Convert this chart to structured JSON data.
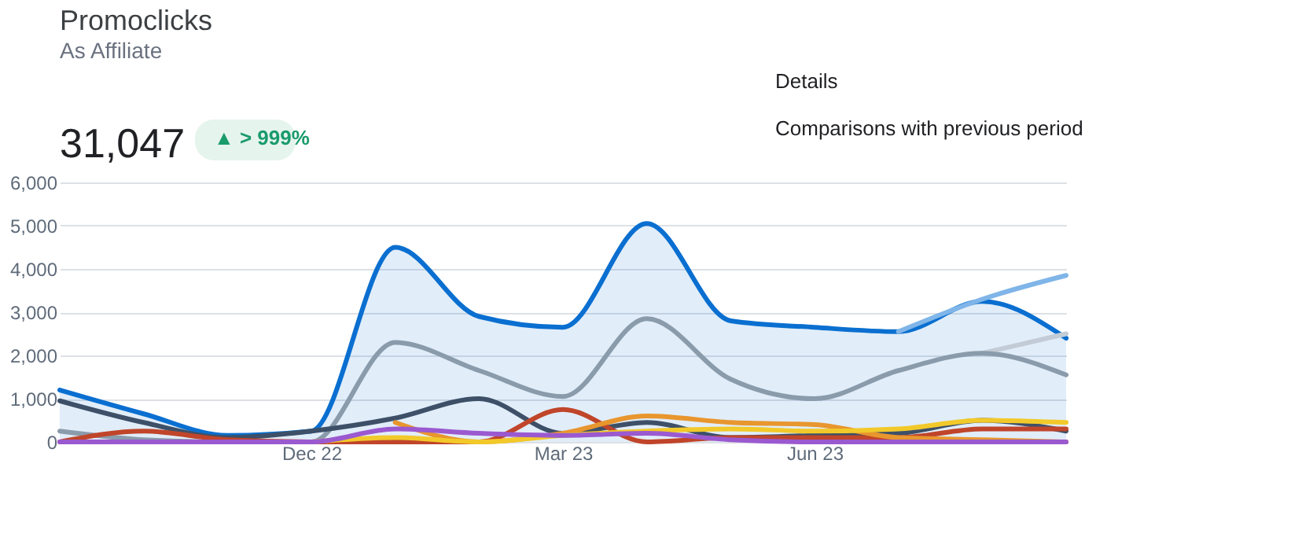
{
  "chart_data": {
    "type": "line",
    "title": "Promoclicks",
    "subtitle": "As Affiliate",
    "annotations": [
      "31,047",
      "▲ > 999%",
      "Details",
      "Comparisons with previous period"
    ],
    "categories": [
      null,
      null,
      null,
      "Dec 22",
      null,
      null,
      "Mar 23",
      null,
      null,
      "Jun 23",
      null,
      null,
      null
    ],
    "ylim": [
      0,
      6000
    ],
    "yticks": [
      {
        "value": 0,
        "label": "0"
      },
      {
        "value": 1000,
        "label": "1,000"
      },
      {
        "value": 2000,
        "label": "2,000"
      },
      {
        "value": 3000,
        "label": "3,000"
      },
      {
        "value": 4000,
        "label": "4,000"
      },
      {
        "value": 5000,
        "label": "5,000"
      },
      {
        "value": 6000,
        "label": "6,000"
      }
    ],
    "grid": "y",
    "marker": "none",
    "line_style": "solid",
    "series": [
      {
        "type": "area",
        "color": "#0a6fd0",
        "values": [
          1200,
          650,
          150,
          250,
          4500,
          2900,
          2650,
          5050,
          2800,
          2650,
          2550,
          3250,
          2400
        ]
      },
      {
        "color": "#7fb5e8",
        "values": [
          null,
          null,
          null,
          null,
          null,
          null,
          null,
          null,
          null,
          null,
          2550,
          3300,
          3850
        ]
      },
      {
        "color": "#c3ccd6",
        "values": [
          null,
          null,
          null,
          null,
          null,
          null,
          null,
          null,
          null,
          null,
          null,
          2050,
          2500
        ]
      },
      {
        "color": "#8a9bab",
        "values": [
          250,
          50,
          0,
          0,
          2300,
          1650,
          1050,
          2850,
          1450,
          1000,
          1650,
          2050,
          1550
        ]
      },
      {
        "color": "#3d5068",
        "values": [
          950,
          450,
          100,
          250,
          550,
          1000,
          200,
          450,
          100,
          150,
          200,
          500,
          250
        ]
      },
      {
        "color": "#c0452a",
        "values": [
          0,
          250,
          50,
          0,
          0,
          0,
          750,
          0,
          100,
          100,
          100,
          300,
          300
        ]
      },
      {
        "color": "#e8962e",
        "values": [
          null,
          null,
          null,
          null,
          450,
          0,
          200,
          600,
          450,
          400,
          100,
          50,
          0
        ]
      },
      {
        "color": "#f2c92a",
        "values": [
          null,
          null,
          null,
          0,
          100,
          0,
          150,
          250,
          300,
          250,
          300,
          500,
          450
        ]
      },
      {
        "color": "#9b59d0",
        "values": [
          0,
          0,
          0,
          0,
          300,
          200,
          150,
          200,
          50,
          0,
          0,
          0,
          0
        ]
      }
    ]
  }
}
